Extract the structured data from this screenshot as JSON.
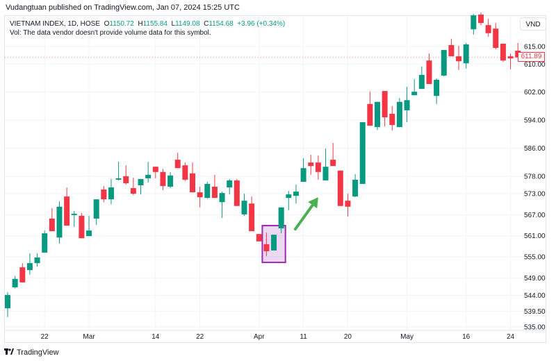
{
  "header": {
    "published": "Vudangtuan published on TradingView.com, Jan 07, 2024 15:25 UTC",
    "symbol": "VIETNAM INDEX, 1D, HOSE",
    "o_label": "O",
    "o_value": "1150.72",
    "h_label": "H",
    "h_value": "1155.84",
    "l_label": "L",
    "l_value": "1149.08",
    "c_label": "C",
    "c_value": "1154.68",
    "change": "+3.96 (+0.34%)",
    "vol_note": "Vol: The data vendor doesn't provide volume data for this symbol."
  },
  "currency": "VND",
  "last_price": "611.89",
  "footer": {
    "brand": "TradingView",
    "logo_text": "17"
  },
  "colors": {
    "up": "#089981",
    "down": "#f23645",
    "highlight": "#9c27b0",
    "arrow": "#4caf50"
  },
  "chart_data": {
    "type": "candlestick",
    "title": "VIETNAM INDEX, 1D, HOSE",
    "ylim": [
      535,
      625
    ],
    "y_ticks": [
      "535.00",
      "539.50",
      "544.00",
      "549.00",
      "555.00",
      "561.00",
      "567.00",
      "573.00",
      "578.00",
      "586.00",
      "594.00",
      "602.00",
      "610.00",
      "615.00"
    ],
    "x_ticks": [
      {
        "label": "22",
        "index": 5
      },
      {
        "label": "Mar",
        "index": 11
      },
      {
        "label": "14",
        "index": 20
      },
      {
        "label": "22",
        "index": 26
      },
      {
        "label": "Apr",
        "index": 34
      },
      {
        "label": "11",
        "index": 40
      },
      {
        "label": "20",
        "index": 46
      },
      {
        "label": "May",
        "index": 54
      },
      {
        "label": "16",
        "index": 62
      },
      {
        "label": "24",
        "index": 68
      }
    ],
    "ohlc": [
      [
        540.3,
        544.9,
        537.8,
        544.1
      ],
      [
        546.3,
        549.5,
        546.0,
        548.7
      ],
      [
        552.0,
        553.2,
        547.7,
        547.7
      ],
      [
        551.2,
        556.0,
        549.9,
        553.2
      ],
      [
        553.2,
        556.0,
        552.2,
        554.8
      ],
      [
        556.2,
        562.5,
        556.2,
        561.7
      ],
      [
        565.9,
        568.9,
        562.3,
        562.3
      ],
      [
        560.5,
        570.8,
        558.8,
        569.3
      ],
      [
        572.2,
        574.8,
        563.9,
        563.9
      ],
      [
        566.9,
        568.1,
        563.5,
        567.3
      ],
      [
        566.7,
        567.5,
        560.3,
        560.3
      ],
      [
        560.9,
        566.7,
        560.9,
        562.5
      ],
      [
        565.9,
        571.4,
        564.1,
        571.4
      ],
      [
        574.2,
        575.2,
        570.6,
        571.4
      ],
      [
        571.4,
        577.2,
        570.0,
        574.8
      ],
      [
        577.0,
        582.1,
        576.8,
        577.4
      ],
      [
        578.0,
        581.1,
        575.6,
        576.0
      ],
      [
        574.6,
        577.6,
        572.6,
        573.0
      ],
      [
        575.4,
        577.2,
        572.8,
        577.2
      ],
      [
        577.4,
        582.1,
        576.2,
        578.4
      ],
      [
        580.7,
        580.7,
        577.4,
        579.2
      ],
      [
        579.2,
        580.1,
        574.0,
        575.2
      ],
      [
        575.0,
        579.2,
        574.6,
        578.2
      ],
      [
        582.7,
        584.7,
        580.3,
        580.3
      ],
      [
        581.1,
        581.9,
        576.6,
        577.0
      ],
      [
        578.8,
        581.9,
        573.4,
        573.4
      ],
      [
        573.4,
        575.0,
        569.1,
        572.0
      ],
      [
        571.8,
        576.4,
        571.6,
        575.8
      ],
      [
        575.0,
        578.4,
        571.8,
        571.8
      ],
      [
        570.6,
        573.6,
        566.1,
        573.2
      ],
      [
        574.8,
        577.2,
        572.8,
        576.8
      ],
      [
        576.8,
        577.2,
        569.5,
        569.5
      ],
      [
        567.1,
        573.0,
        566.7,
        571.0
      ],
      [
        570.2,
        572.2,
        562.3,
        562.3
      ],
      [
        561.5,
        561.5,
        559.4,
        559.4
      ],
      [
        558.6,
        561.9,
        555.2,
        556.6
      ],
      [
        556.8,
        561.3,
        556.8,
        561.3
      ],
      [
        563.1,
        569.1,
        561.7,
        569.1
      ],
      [
        571.8,
        573.8,
        568.3,
        572.8
      ],
      [
        572.4,
        575.6,
        570.2,
        573.6
      ],
      [
        576.4,
        583.1,
        576.4,
        580.3
      ],
      [
        581.9,
        584.1,
        578.4,
        580.9
      ],
      [
        581.9,
        583.9,
        577.0,
        579.2
      ],
      [
        576.8,
        585.9,
        576.8,
        580.7
      ],
      [
        582.7,
        587.5,
        580.9,
        580.9
      ],
      [
        579.6,
        579.6,
        569.5,
        569.5
      ],
      [
        571.0,
        573.0,
        566.5,
        569.3
      ],
      [
        572.2,
        578.6,
        572.0,
        577.0
      ],
      [
        575.8,
        593.4,
        575.8,
        593.4
      ],
      [
        598.6,
        602.1,
        592.4,
        592.4
      ],
      [
        592.0,
        599.2,
        591.2,
        599.2
      ],
      [
        602.3,
        602.3,
        592.2,
        594.8
      ],
      [
        595.8,
        598.0,
        591.0,
        592.6
      ],
      [
        592.0,
        600.3,
        592.0,
        599.2
      ],
      [
        596.8,
        603.5,
        593.4,
        599.7
      ],
      [
        601.1,
        605.7,
        601.1,
        602.1
      ],
      [
        602.9,
        609.3,
        602.9,
        606.9
      ],
      [
        611.0,
        613.0,
        604.3,
        604.3
      ],
      [
        600.9,
        605.9,
        598.6,
        605.5
      ],
      [
        606.7,
        614.0,
        606.5,
        614.0
      ],
      [
        615.4,
        617.2,
        612.2,
        612.2
      ],
      [
        612.2,
        615.2,
        608.3,
        610.8
      ],
      [
        610.2,
        616.0,
        608.7,
        615.6
      ],
      [
        619.9,
        624.3,
        618.4,
        623.9
      ],
      [
        624.1,
        624.7,
        621.1,
        621.7
      ],
      [
        621.1,
        622.9,
        617.8,
        618.8
      ],
      [
        620.1,
        621.7,
        614.2,
        614.6
      ],
      [
        615.8,
        615.8,
        610.6,
        611.0
      ],
      [
        612.2,
        613.0,
        608.5,
        611.6
      ],
      [
        613.8,
        616.0,
        611.9,
        611.89
      ]
    ],
    "annotations": [
      {
        "type": "rectangle",
        "from_index": 35,
        "to_index": 37,
        "price_top": 563.9,
        "price_bottom": 553.4
      },
      {
        "type": "arrow",
        "from_index": 38.9,
        "from_price": 562.9,
        "to_index": 42.0,
        "to_price": 572.0
      }
    ]
  }
}
